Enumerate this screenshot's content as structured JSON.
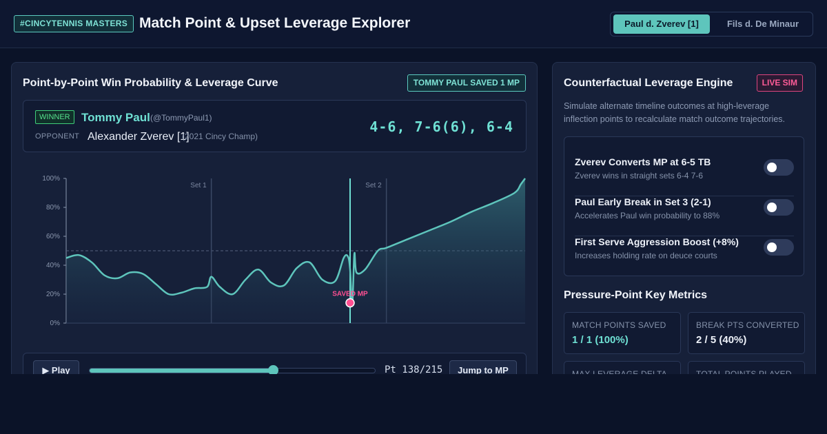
{
  "header": {
    "tag": "#CINCYTENNIS MASTERS",
    "title": "Match Point & Upset Leverage Explorer",
    "matches": [
      {
        "label": "Paul d. Zverev [1]",
        "active": true
      },
      {
        "label": "Fils d. De Minaur",
        "active": false
      }
    ]
  },
  "curve_panel": {
    "title": "Point-by-Point Win Probability & Leverage Curve",
    "badge": "TOMMY PAUL SAVED 1 MP",
    "winner_tag": "WINNER",
    "winner_name": "Tommy Paul",
    "winner_handle": "(@TommyPaul1)",
    "opponent_label": "OPPONENT",
    "opponent_name": "Alexander Zverev [1]",
    "opponent_note": "(2021 Cincy Champ)",
    "score": "4-6, 7-6(6), 6-4"
  },
  "chart_data": {
    "type": "area",
    "ylabel": "",
    "xlabel": "",
    "yticks": [
      "0%",
      "20%",
      "40%",
      "60%",
      "80%",
      "100%"
    ],
    "ylim": [
      0,
      100
    ],
    "xlim": [
      0,
      215
    ],
    "reference_line": 50,
    "set_markers": [
      {
        "label": "Set 1",
        "x": 68
      },
      {
        "label": "Set 2",
        "x": 150
      }
    ],
    "annotation": {
      "label": "SAVED MP",
      "x": 133,
      "y": 14
    },
    "x": [
      0,
      6,
      12,
      18,
      24,
      30,
      36,
      42,
      48,
      54,
      60,
      66,
      68,
      72,
      78,
      84,
      90,
      96,
      102,
      108,
      114,
      120,
      126,
      130,
      132,
      133,
      134,
      135,
      136,
      140,
      146,
      150,
      160,
      170,
      180,
      190,
      200,
      210,
      213,
      215
    ],
    "y": [
      45,
      47,
      42,
      33,
      31,
      35,
      34,
      27,
      20,
      21,
      24,
      25,
      32,
      25,
      20,
      30,
      37,
      28,
      26,
      38,
      42,
      30,
      29,
      45,
      46,
      37,
      12,
      48,
      35,
      37,
      50,
      52,
      58,
      64,
      70,
      77,
      83,
      90,
      96,
      100
    ],
    "grid": false
  },
  "playback": {
    "play_label": "▶ Play",
    "current_point": 138,
    "total_points": 215,
    "readout": "Pt 138/215",
    "jump_label": "Jump to MP"
  },
  "engine_panel": {
    "title": "Counterfactual Leverage Engine",
    "badge": "LIVE SIM",
    "description": "Simulate alternate timeline outcomes at high-leverage inflection points to recalculate match outcome trajectories.",
    "scenarios": [
      {
        "title": "Zverev Converts MP at 6-5 TB",
        "subtitle": "Zverev wins in straight sets 6-4 7-6",
        "enabled": false
      },
      {
        "title": "Paul Early Break in Set 3 (2-1)",
        "subtitle": "Accelerates Paul win probability to 88%",
        "enabled": false
      },
      {
        "title": "First Serve Aggression Boost (+8%)",
        "subtitle": "Increases holding rate on deuce courts",
        "enabled": false
      }
    ],
    "metrics_title": "Pressure-Point Key Metrics",
    "metrics": [
      {
        "label": "MATCH POINTS SAVED",
        "value": "1 / 1 (100%)"
      },
      {
        "label": "BREAK PTS CONVERTED",
        "value": "2 / 5 (40%)"
      },
      {
        "label": "MAX LEVERAGE DELTA",
        "value": ""
      },
      {
        "label": "TOTAL POINTS PLAYED",
        "value": ""
      }
    ]
  },
  "colors": {
    "accent": "#5ec5bc",
    "danger": "#ff4f92",
    "background": "#0b1328"
  }
}
